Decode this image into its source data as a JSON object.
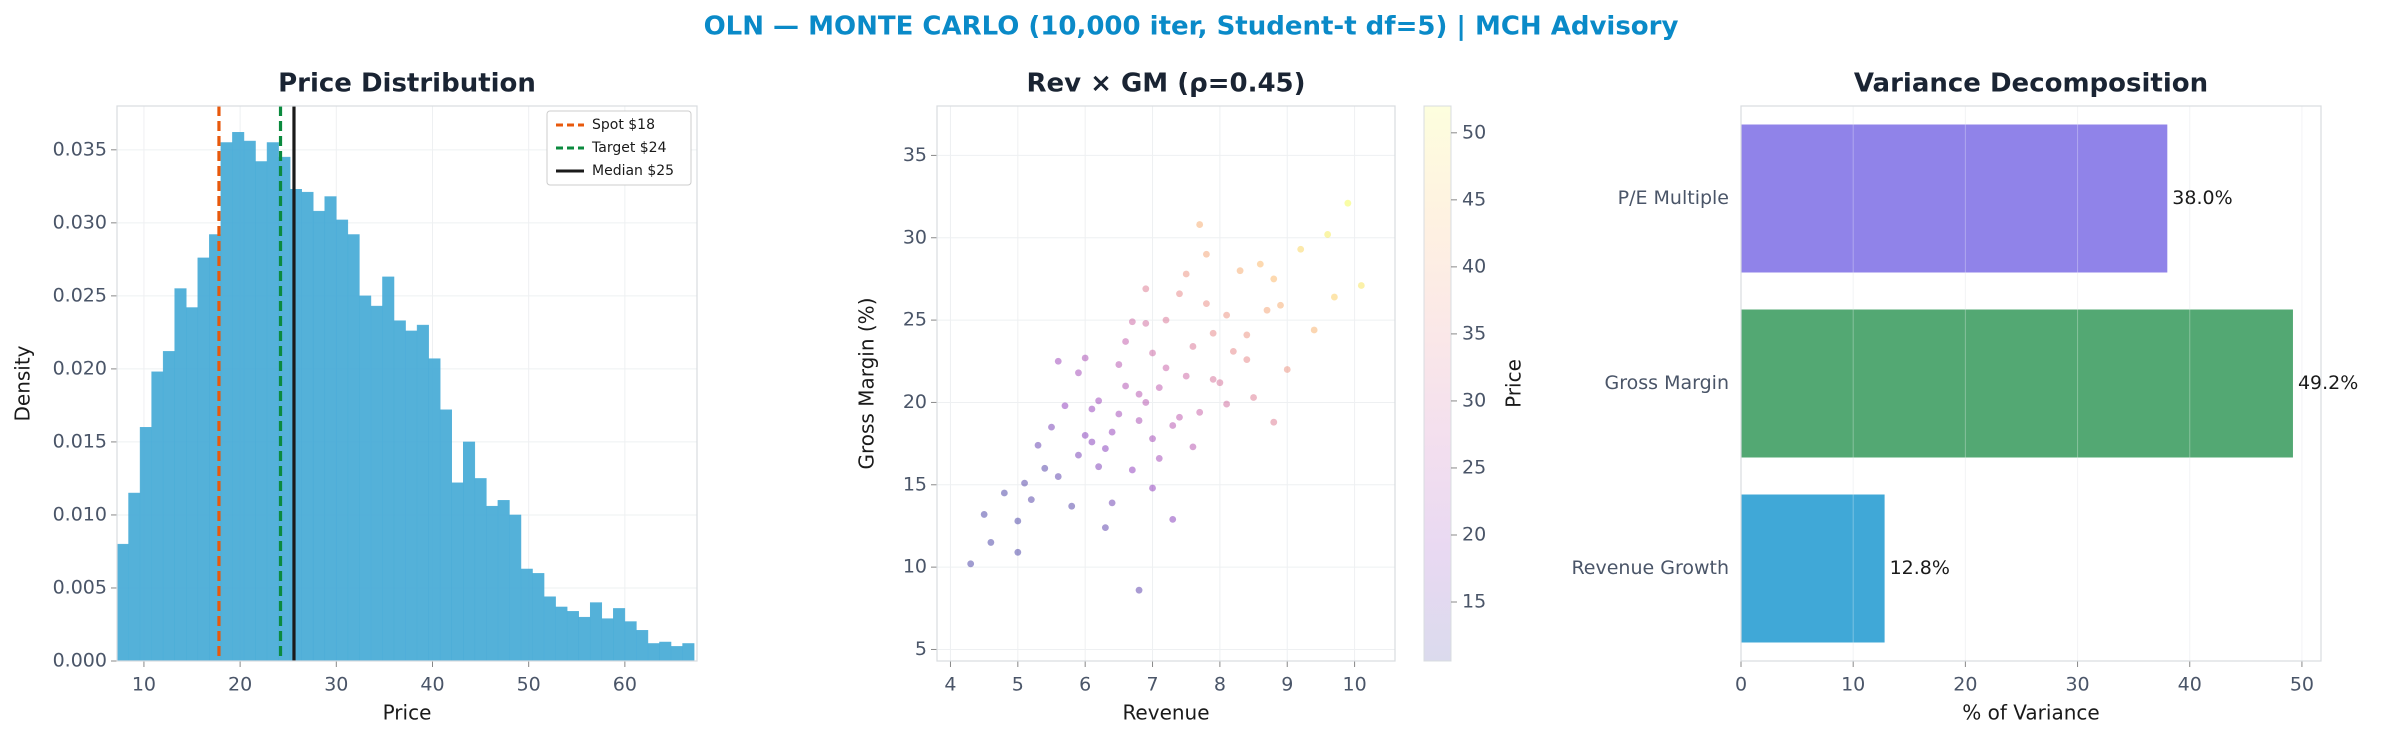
{
  "title": "OLN — MONTE CARLO (10,000 iter, Student-t df=5) | MCH Advisory",
  "chart_data": [
    {
      "type": "histogram",
      "title": "Price Distribution",
      "xlabel": "Price",
      "ylabel": "Density",
      "color": "#4badd8",
      "grid": true,
      "bins": [
        7.2,
        8.4,
        9.6,
        10.8,
        12,
        13.2,
        14.4,
        15.6,
        16.8,
        18,
        19.2,
        20.4,
        21.6,
        22.8,
        24,
        25.2,
        26.4,
        27.6,
        28.8,
        30,
        31.2,
        32.4,
        33.6,
        34.8,
        36,
        37.2,
        38.4,
        39.6,
        40.8,
        42,
        43.2,
        44.4,
        45.6,
        46.8,
        48,
        49.2,
        50.4,
        51.6,
        52.8,
        54,
        55.2,
        56.4,
        57.6,
        58.8,
        60,
        61.2,
        62.4,
        63.6,
        64.8,
        66,
        67.2
      ],
      "counts": [
        0.008,
        0.0115,
        0.016,
        0.0198,
        0.0212,
        0.0255,
        0.0242,
        0.0276,
        0.0292,
        0.0355,
        0.0362,
        0.0356,
        0.0342,
        0.0355,
        0.0345,
        0.0323,
        0.0321,
        0.0308,
        0.0318,
        0.0302,
        0.0292,
        0.025,
        0.0243,
        0.0263,
        0.0233,
        0.0226,
        0.023,
        0.0207,
        0.0172,
        0.0122,
        0.015,
        0.0125,
        0.0106,
        0.011,
        0.01,
        0.0063,
        0.006,
        0.0044,
        0.0037,
        0.0034,
        0.003,
        0.004,
        0.0029,
        0.0036,
        0.0027,
        0.0021,
        0.0012,
        0.0013,
        0.001,
        0.0012
      ],
      "xlim": [
        7.2,
        67.5
      ],
      "xticks": [
        10,
        20,
        30,
        40,
        50,
        60
      ],
      "ylim": [
        0,
        0.038
      ],
      "yticks": [
        {
          "value": 0,
          "label": "0.000"
        },
        {
          "value": 0.005,
          "label": "0.005"
        },
        {
          "value": 0.01,
          "label": "0.010"
        },
        {
          "value": 0.015,
          "label": "0.015"
        },
        {
          "value": 0.02,
          "label": "0.020"
        },
        {
          "value": 0.025,
          "label": "0.025"
        },
        {
          "value": 0.03,
          "label": "0.030"
        },
        {
          "value": 0.035,
          "label": "0.035"
        }
      ],
      "ref_lines": [
        {
          "label": "Spot $18",
          "value": 17.8,
          "color": "#e8590c",
          "style": "dashed"
        },
        {
          "label": "Target $24",
          "value": 24.2,
          "color": "#0b8a3e",
          "style": "dashed"
        },
        {
          "label": "Median $25",
          "value": 25.6,
          "color": "#1a1a1a",
          "style": "solid"
        }
      ],
      "legend": "upper right"
    },
    {
      "type": "scatter",
      "title": "Rev × GM (ρ=0.45)",
      "xlabel": "Revenue",
      "ylabel": "Gross Margin (%)",
      "grid": true,
      "x": [
        6.8,
        7.2,
        5.9,
        8.1,
        6.4,
        7.6,
        5.2,
        8.8,
        6.1,
        7.0,
        7.9,
        6.6,
        5.6,
        9.2,
        7.4,
        6.9,
        8.4,
        5.0,
        6.3,
        7.8,
        7.1,
        6.0,
        8.6,
        5.4,
        7.5,
        6.7,
        9.6,
        4.6,
        7.3,
        8.2,
        6.2,
        7.7,
        5.8,
        8.9,
        6.5,
        7.0,
        4.3,
        9.9,
        6.8,
        8.0,
        5.5,
        7.2,
        6.4,
        8.3,
        7.6,
        5.9,
        6.9,
        9.4,
        5.1,
        7.4,
        6.1,
        8.5,
        7.8,
        4.8,
        6.6,
        7.1,
        8.7,
        5.7,
        6.3,
        10.1,
        7.0,
        6.0,
        8.1,
        5.3,
        7.5,
        6.7,
        9.0,
        6.2,
        7.9,
        4.5,
        6.9,
        8.4,
        5.6,
        7.3,
        6.5,
        9.7,
        5.0,
        7.7,
        6.8,
        8.8
      ],
      "y": [
        20.5,
        22.1,
        16.8,
        25.3,
        18.2,
        23.4,
        14.1,
        27.5,
        19.6,
        17.8,
        24.2,
        21.0,
        15.5,
        29.3,
        19.1,
        24.8,
        22.6,
        12.8,
        17.2,
        26.0,
        20.9,
        22.7,
        28.4,
        16.0,
        21.6,
        15.9,
        30.2,
        11.5,
        18.6,
        23.1,
        20.1,
        19.4,
        13.7,
        25.9,
        22.3,
        14.8,
        10.2,
        32.1,
        18.9,
        21.2,
        18.5,
        25.0,
        13.9,
        28.0,
        17.3,
        21.8,
        20.0,
        24.4,
        15.1,
        26.6,
        17.6,
        20.3,
        29.0,
        14.5,
        23.7,
        16.6,
        25.6,
        19.8,
        12.4,
        27.1,
        23.0,
        18.0,
        19.9,
        17.4,
        27.8,
        24.9,
        22.0,
        16.1,
        21.4,
        13.2,
        26.9,
        24.1,
        22.5,
        12.9,
        19.3,
        26.4,
        10.9,
        30.8,
        8.6,
        18.8
      ],
      "color_values": [
        25,
        28,
        16,
        37,
        20,
        32,
        12,
        43,
        20,
        22,
        35,
        24,
        13,
        47,
        26,
        30,
        35,
        11,
        18,
        36,
        26,
        23,
        43,
        12,
        29,
        19,
        50,
        11,
        25,
        35,
        21,
        28,
        12,
        41,
        25,
        19,
        11,
        52,
        23,
        31,
        16,
        32,
        15,
        41,
        25,
        22,
        25,
        42,
        12,
        35,
        18,
        33,
        40,
        11,
        27,
        22,
        40,
        19,
        13,
        49,
        29,
        18,
        30,
        14,
        37,
        29,
        37,
        17,
        31,
        11,
        33,
        37,
        21,
        18,
        22,
        46,
        11,
        41,
        13,
        33
      ],
      "colormap": "plasma",
      "clim": [
        10.6,
        52
      ],
      "colorbar_label": "Price",
      "colorbar_ticks": [
        15,
        20,
        25,
        30,
        35,
        40,
        45,
        50
      ],
      "xlim": [
        3.8,
        10.6
      ],
      "xticks": [
        4,
        5,
        6,
        7,
        8,
        9,
        10
      ],
      "ylim": [
        4.3,
        38
      ],
      "yticks": [
        5,
        10,
        15,
        20,
        25,
        30,
        35
      ]
    },
    {
      "type": "barh",
      "title": "Variance Decomposition",
      "xlabel": "% of Variance",
      "grid": true,
      "categories": [
        "P/E Multiple",
        "Gross Margin",
        "Revenue Growth"
      ],
      "values": [
        38.0,
        49.2,
        12.8
      ],
      "value_labels": [
        "38.0%",
        "49.2%",
        "12.8%"
      ],
      "colors": [
        "#8a7ce8",
        "#4aa36c",
        "#36a3d5"
      ],
      "xlim": [
        0,
        51.7
      ],
      "xticks": [
        0,
        10,
        20,
        30,
        40,
        50
      ]
    }
  ]
}
